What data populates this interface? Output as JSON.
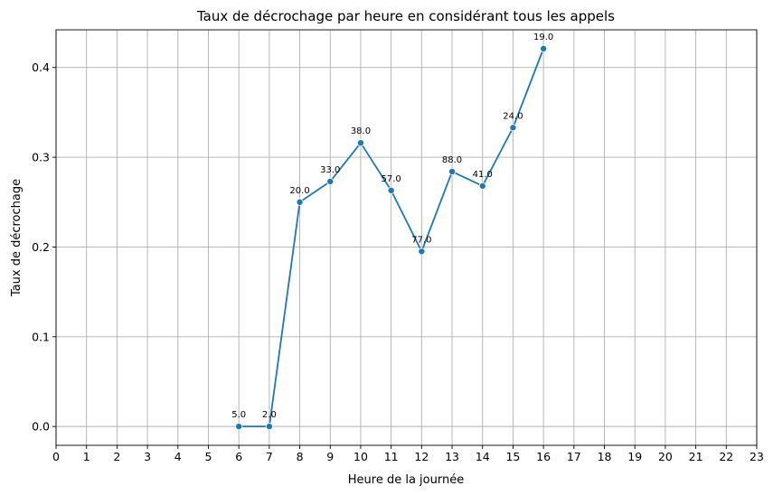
{
  "chart_data": {
    "type": "line",
    "title": "Taux de décrochage par heure en considérant tous les appels",
    "xlabel": "Heure de la journée",
    "ylabel": "Taux de décrochage",
    "xlim": [
      0,
      23
    ],
    "ylim": [
      -0.021,
      0.442
    ],
    "x_ticks": [
      0,
      1,
      2,
      3,
      4,
      5,
      6,
      7,
      8,
      9,
      10,
      11,
      12,
      13,
      14,
      15,
      16,
      17,
      18,
      19,
      20,
      21,
      22,
      23
    ],
    "y_ticks": [
      0.0,
      0.1,
      0.2,
      0.3,
      0.4
    ],
    "y_tick_labels": [
      "0.0",
      "0.1",
      "0.2",
      "0.3",
      "0.4"
    ],
    "grid": true,
    "color": "#1f77b4",
    "series": [
      {
        "x": [
          6,
          7,
          8,
          9,
          10,
          11,
          12,
          13,
          14,
          15,
          16
        ],
        "y": [
          0.0,
          0.0,
          0.25,
          0.273,
          0.316,
          0.263,
          0.195,
          0.284,
          0.268,
          0.333,
          0.421
        ],
        "labels": [
          "5.0",
          "2.0",
          "20.0",
          "33.0",
          "38.0",
          "57.0",
          "77.0",
          "88.0",
          "41.0",
          "24.0",
          "19.0"
        ]
      }
    ]
  }
}
